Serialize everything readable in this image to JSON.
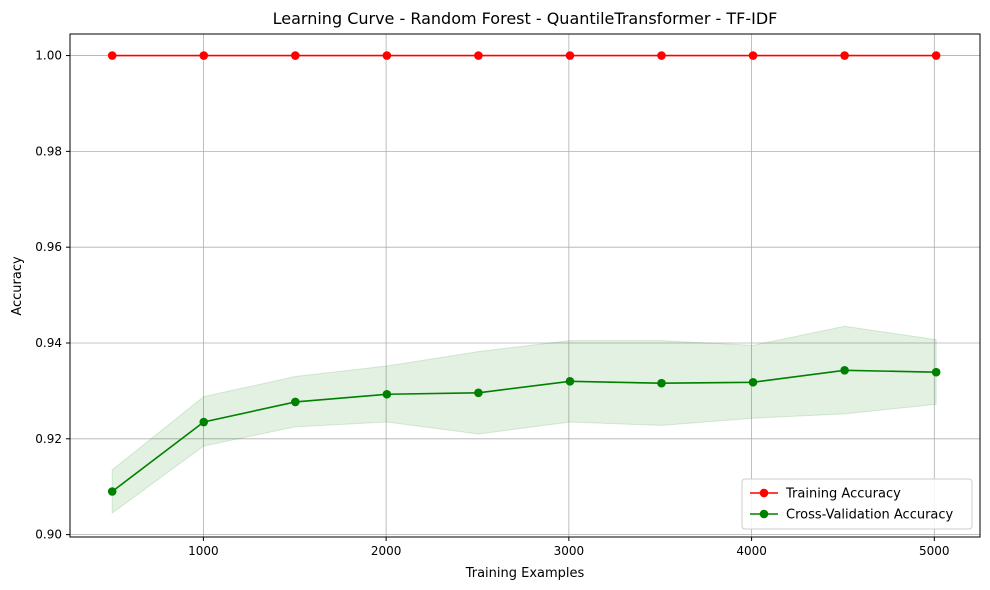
{
  "chart_data": {
    "type": "line",
    "title": "Learning Curve - Random Forest - QuantileTransformer - TF-IDF",
    "xlabel": "Training Examples",
    "ylabel": "Accuracy",
    "xlim": [
      270,
      5250
    ],
    "ylim": [
      0.8995,
      1.0045
    ],
    "xticks": [
      1000,
      2000,
      3000,
      4000,
      5000
    ],
    "xtick_labels": [
      "1000",
      "2000",
      "3000",
      "4000",
      "5000"
    ],
    "yticks": [
      0.9,
      0.92,
      0.94,
      0.96,
      0.98,
      1.0
    ],
    "ytick_labels": [
      "0.90",
      "0.92",
      "0.94",
      "0.96",
      "0.98",
      "1.00"
    ],
    "grid": true,
    "legend_position": "bottom-right",
    "x": [
      501,
      1002,
      1503,
      2004,
      2505,
      3006,
      3507,
      4008,
      4509,
      5010
    ],
    "series": [
      {
        "name": "Training Accuracy",
        "color": "#ff0000",
        "values": [
          1.0,
          1.0,
          1.0,
          1.0,
          1.0,
          1.0,
          1.0,
          1.0,
          1.0,
          1.0
        ]
      },
      {
        "name": "Cross-Validation Accuracy",
        "color": "#008000",
        "band_color": "#008000",
        "values": [
          0.909,
          0.9235,
          0.9277,
          0.9293,
          0.9296,
          0.932,
          0.9316,
          0.9318,
          0.9343,
          0.9339
        ],
        "band_lower": [
          0.9045,
          0.9185,
          0.9225,
          0.9235,
          0.921,
          0.9235,
          0.9228,
          0.9243,
          0.9252,
          0.9272
        ],
        "band_upper": [
          0.9135,
          0.9288,
          0.933,
          0.9352,
          0.9382,
          0.9405,
          0.9405,
          0.9395,
          0.9435,
          0.9407
        ]
      }
    ]
  }
}
